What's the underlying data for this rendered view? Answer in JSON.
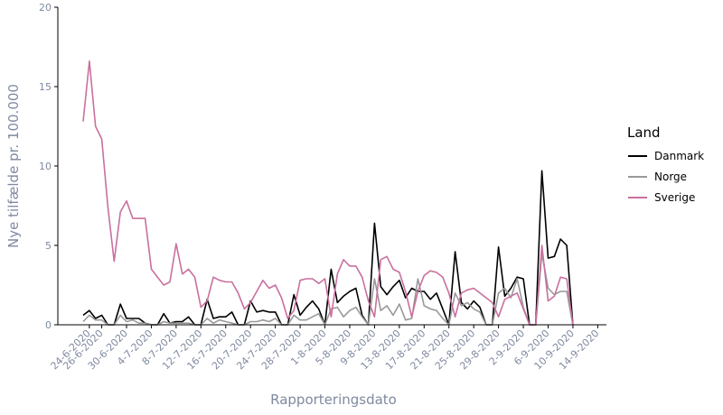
{
  "chart_data": {
    "type": "line",
    "xlabel": "Rapporteringsdato",
    "ylabel": "Nye tilfælde pr. 100.000",
    "ylim": [
      0,
      20
    ],
    "yticks": [
      0,
      5,
      10,
      15,
      20
    ],
    "x_start": "2020-06-23",
    "xticks": [
      "24-6-2020",
      "26-6-2020",
      "30-6-2020",
      "4-7-2020",
      "8-7-2020",
      "12-7-2020",
      "16-7-2020",
      "20-7-2020",
      "24-7-2020",
      "28-7-2020",
      "1-8-2020",
      "5-8-2020",
      "9-8-2020",
      "13-8-2020",
      "17-8-2020",
      "21-8-2020",
      "25-8-2020",
      "29-8-2020",
      "2-9-2020",
      "6-9-2020",
      "10-9-2020",
      "14-9-2020"
    ],
    "legend": {
      "title": "Land",
      "position": "right"
    },
    "grid": false,
    "series": [
      {
        "name": "Danmark",
        "color": "#000000",
        "points": [
          [
            "23-6-2020",
            0.6
          ],
          [
            "24-6-2020",
            0.9
          ],
          [
            "25-6-2020",
            0.4
          ],
          [
            "26-6-2020",
            0.6
          ],
          [
            "27-6-2020",
            0.0
          ],
          [
            "28-6-2020",
            0.0
          ],
          [
            "29-6-2020",
            1.3
          ],
          [
            "30-6-2020",
            0.4
          ],
          [
            "1-7-2020",
            0.4
          ],
          [
            "2-7-2020",
            0.4
          ],
          [
            "3-7-2020",
            0.1
          ],
          [
            "4-7-2020",
            0.0
          ],
          [
            "5-7-2020",
            0.0
          ],
          [
            "6-7-2020",
            0.7
          ],
          [
            "7-7-2020",
            0.1
          ],
          [
            "8-7-2020",
            0.2
          ],
          [
            "9-7-2020",
            0.2
          ],
          [
            "10-7-2020",
            0.5
          ],
          [
            "11-7-2020",
            0.0
          ],
          [
            "12-7-2020",
            0.0
          ],
          [
            "13-7-2020",
            1.6
          ],
          [
            "14-7-2020",
            0.4
          ],
          [
            "15-7-2020",
            0.5
          ],
          [
            "16-7-2020",
            0.5
          ],
          [
            "17-7-2020",
            0.8
          ],
          [
            "18-7-2020",
            0.0
          ],
          [
            "19-7-2020",
            0.0
          ],
          [
            "20-7-2020",
            1.5
          ],
          [
            "21-7-2020",
            0.8
          ],
          [
            "22-7-2020",
            0.9
          ],
          [
            "23-7-2020",
            0.8
          ],
          [
            "24-7-2020",
            0.8
          ],
          [
            "25-7-2020",
            0.0
          ],
          [
            "26-7-2020",
            0.0
          ],
          [
            "27-7-2020",
            1.9
          ],
          [
            "28-7-2020",
            0.6
          ],
          [
            "29-7-2020",
            1.1
          ],
          [
            "30-7-2020",
            1.5
          ],
          [
            "31-7-2020",
            1.0
          ],
          [
            "1-8-2020",
            0.0
          ],
          [
            "2-8-2020",
            3.5
          ],
          [
            "3-8-2020",
            1.4
          ],
          [
            "4-8-2020",
            1.8
          ],
          [
            "5-8-2020",
            2.1
          ],
          [
            "6-8-2020",
            2.3
          ],
          [
            "7-8-2020",
            0.6
          ],
          [
            "8-8-2020",
            0.0
          ],
          [
            "9-8-2020",
            6.4
          ],
          [
            "10-8-2020",
            2.4
          ],
          [
            "11-8-2020",
            1.9
          ],
          [
            "12-8-2020",
            2.4
          ],
          [
            "13-8-2020",
            2.8
          ],
          [
            "14-8-2020",
            1.7
          ],
          [
            "15-8-2020",
            2.3
          ],
          [
            "16-8-2020",
            2.1
          ],
          [
            "17-8-2020",
            2.1
          ],
          [
            "18-8-2020",
            1.6
          ],
          [
            "19-8-2020",
            2.0
          ],
          [
            "20-8-2020",
            1.0
          ],
          [
            "21-8-2020",
            0.0
          ],
          [
            "22-8-2020",
            4.6
          ],
          [
            "23-8-2020",
            1.4
          ],
          [
            "24-8-2020",
            1.0
          ],
          [
            "25-8-2020",
            1.5
          ],
          [
            "26-8-2020",
            1.1
          ],
          [
            "27-8-2020",
            0.0
          ],
          [
            "28-8-2020",
            0.0
          ],
          [
            "29-8-2020",
            4.9
          ],
          [
            "30-8-2020",
            1.8
          ],
          [
            "31-8-2020",
            2.3
          ],
          [
            "1-9-2020",
            3.0
          ],
          [
            "2-9-2020",
            2.9
          ],
          [
            "3-9-2020",
            0.0
          ],
          [
            "4-9-2020",
            0.0
          ],
          [
            "5-9-2020",
            9.7
          ],
          [
            "6-9-2020",
            4.2
          ],
          [
            "7-9-2020",
            4.3
          ],
          [
            "8-9-2020",
            5.4
          ],
          [
            "9-9-2020",
            5.0
          ],
          [
            "10-9-2020",
            0.0
          ]
        ]
      },
      {
        "name": "Norge",
        "color": "#999999",
        "points": [
          [
            "23-6-2020",
            0.2
          ],
          [
            "24-6-2020",
            0.6
          ],
          [
            "25-6-2020",
            0.3
          ],
          [
            "26-6-2020",
            0.3
          ],
          [
            "27-6-2020",
            0.0
          ],
          [
            "28-6-2020",
            0.0
          ],
          [
            "29-6-2020",
            0.6
          ],
          [
            "30-6-2020",
            0.2
          ],
          [
            "1-7-2020",
            0.3
          ],
          [
            "2-7-2020",
            0.1
          ],
          [
            "3-7-2020",
            0.1
          ],
          [
            "4-7-2020",
            0.0
          ],
          [
            "5-7-2020",
            0.0
          ],
          [
            "6-7-2020",
            0.2
          ],
          [
            "7-7-2020",
            0.1
          ],
          [
            "8-7-2020",
            0.1
          ],
          [
            "9-7-2020",
            0.1
          ],
          [
            "10-7-2020",
            0.1
          ],
          [
            "11-7-2020",
            0.0
          ],
          [
            "12-7-2020",
            0.0
          ],
          [
            "13-7-2020",
            0.4
          ],
          [
            "14-7-2020",
            0.1
          ],
          [
            "15-7-2020",
            0.3
          ],
          [
            "16-7-2020",
            0.2
          ],
          [
            "17-7-2020",
            0.1
          ],
          [
            "18-7-2020",
            0.0
          ],
          [
            "19-7-2020",
            0.0
          ],
          [
            "20-7-2020",
            0.2
          ],
          [
            "21-7-2020",
            0.2
          ],
          [
            "22-7-2020",
            0.3
          ],
          [
            "23-7-2020",
            0.2
          ],
          [
            "24-7-2020",
            0.4
          ],
          [
            "25-7-2020",
            0.0
          ],
          [
            "26-7-2020",
            0.0
          ],
          [
            "27-7-2020",
            0.6
          ],
          [
            "28-7-2020",
            0.3
          ],
          [
            "29-7-2020",
            0.3
          ],
          [
            "30-7-2020",
            0.5
          ],
          [
            "31-7-2020",
            0.7
          ],
          [
            "1-8-2020",
            0.0
          ],
          [
            "2-8-2020",
            1.0
          ],
          [
            "3-8-2020",
            1.1
          ],
          [
            "4-8-2020",
            0.5
          ],
          [
            "5-8-2020",
            0.9
          ],
          [
            "6-8-2020",
            1.1
          ],
          [
            "7-8-2020",
            0.5
          ],
          [
            "8-8-2020",
            0.0
          ],
          [
            "9-8-2020",
            2.9
          ],
          [
            "10-8-2020",
            0.9
          ],
          [
            "11-8-2020",
            1.2
          ],
          [
            "12-8-2020",
            0.6
          ],
          [
            "13-8-2020",
            1.3
          ],
          [
            "14-8-2020",
            0.3
          ],
          [
            "15-8-2020",
            0.4
          ],
          [
            "16-8-2020",
            2.9
          ],
          [
            "17-8-2020",
            1.2
          ],
          [
            "18-8-2020",
            1.0
          ],
          [
            "19-8-2020",
            0.9
          ],
          [
            "20-8-2020",
            0.4
          ],
          [
            "21-8-2020",
            0.0
          ],
          [
            "22-8-2020",
            2.0
          ],
          [
            "23-8-2020",
            1.2
          ],
          [
            "24-8-2020",
            1.4
          ],
          [
            "25-8-2020",
            1.0
          ],
          [
            "26-8-2020",
            0.8
          ],
          [
            "27-8-2020",
            0.0
          ],
          [
            "28-8-2020",
            0.0
          ],
          [
            "29-8-2020",
            2.0
          ],
          [
            "30-8-2020",
            2.3
          ],
          [
            "31-8-2020",
            1.7
          ],
          [
            "1-9-2020",
            2.9
          ],
          [
            "2-9-2020",
            1.1
          ],
          [
            "3-9-2020",
            0.0
          ],
          [
            "4-9-2020",
            0.0
          ],
          [
            "5-9-2020",
            4.5
          ],
          [
            "6-9-2020",
            2.3
          ],
          [
            "7-9-2020",
            1.9
          ],
          [
            "8-9-2020",
            2.1
          ],
          [
            "9-9-2020",
            2.1
          ],
          [
            "10-9-2020",
            0.0
          ]
        ]
      },
      {
        "name": "Sverige",
        "color": "#c9709e",
        "points": [
          [
            "23-6-2020",
            12.8
          ],
          [
            "24-6-2020",
            16.6
          ],
          [
            "25-6-2020",
            12.5
          ],
          [
            "26-6-2020",
            11.7
          ],
          [
            "27-6-2020",
            7.4
          ],
          [
            "28-6-2020",
            4.0
          ],
          [
            "29-6-2020",
            7.1
          ],
          [
            "30-6-2020",
            7.8
          ],
          [
            "1-7-2020",
            6.7
          ],
          [
            "2-7-2020",
            6.7
          ],
          [
            "3-7-2020",
            6.7
          ],
          [
            "4-7-2020",
            3.5
          ],
          [
            "5-7-2020",
            3.0
          ],
          [
            "6-7-2020",
            2.5
          ],
          [
            "7-7-2020",
            2.7
          ],
          [
            "8-7-2020",
            5.1
          ],
          [
            "9-7-2020",
            3.2
          ],
          [
            "10-7-2020",
            3.5
          ],
          [
            "11-7-2020",
            3.0
          ],
          [
            "12-7-2020",
            1.1
          ],
          [
            "13-7-2020",
            1.5
          ],
          [
            "14-7-2020",
            3.0
          ],
          [
            "15-7-2020",
            2.8
          ],
          [
            "16-7-2020",
            2.7
          ],
          [
            "17-7-2020",
            2.7
          ],
          [
            "18-7-2020",
            2.0
          ],
          [
            "19-7-2020",
            1.0
          ],
          [
            "20-7-2020",
            1.4
          ],
          [
            "21-7-2020",
            2.1
          ],
          [
            "22-7-2020",
            2.8
          ],
          [
            "23-7-2020",
            2.3
          ],
          [
            "24-7-2020",
            2.5
          ],
          [
            "25-7-2020",
            1.7
          ],
          [
            "26-7-2020",
            0.4
          ],
          [
            "27-7-2020",
            0.9
          ],
          [
            "28-7-2020",
            2.8
          ],
          [
            "29-7-2020",
            2.9
          ],
          [
            "30-7-2020",
            2.9
          ],
          [
            "31-7-2020",
            2.6
          ],
          [
            "1-8-2020",
            2.9
          ],
          [
            "2-8-2020",
            0.5
          ],
          [
            "3-8-2020",
            3.2
          ],
          [
            "4-8-2020",
            4.1
          ],
          [
            "5-8-2020",
            3.7
          ],
          [
            "6-8-2020",
            3.7
          ],
          [
            "7-8-2020",
            3.0
          ],
          [
            "8-8-2020",
            1.5
          ],
          [
            "9-8-2020",
            0.5
          ],
          [
            "10-8-2020",
            4.1
          ],
          [
            "11-8-2020",
            4.3
          ],
          [
            "12-8-2020",
            3.5
          ],
          [
            "13-8-2020",
            3.3
          ],
          [
            "14-8-2020",
            2.1
          ],
          [
            "15-8-2020",
            0.5
          ],
          [
            "16-8-2020",
            2.1
          ],
          [
            "17-8-2020",
            3.1
          ],
          [
            "18-8-2020",
            3.4
          ],
          [
            "19-8-2020",
            3.3
          ],
          [
            "20-8-2020",
            3.0
          ],
          [
            "21-8-2020",
            2.0
          ],
          [
            "22-8-2020",
            0.5
          ],
          [
            "23-8-2020",
            2.0
          ],
          [
            "24-8-2020",
            2.2
          ],
          [
            "25-8-2020",
            2.3
          ],
          [
            "26-8-2020",
            2.0
          ],
          [
            "27-8-2020",
            1.7
          ],
          [
            "28-8-2020",
            1.4
          ],
          [
            "29-8-2020",
            0.5
          ],
          [
            "30-8-2020",
            1.6
          ],
          [
            "31-8-2020",
            1.8
          ],
          [
            "1-9-2020",
            2.0
          ],
          [
            "2-9-2020",
            1.0
          ],
          [
            "3-9-2020",
            0.0
          ],
          [
            "4-9-2020",
            0.0
          ],
          [
            "5-9-2020",
            5.0
          ],
          [
            "6-9-2020",
            1.5
          ],
          [
            "7-9-2020",
            1.8
          ],
          [
            "8-9-2020",
            3.0
          ],
          [
            "9-9-2020",
            2.9
          ],
          [
            "10-9-2020",
            0.0
          ]
        ]
      }
    ]
  }
}
